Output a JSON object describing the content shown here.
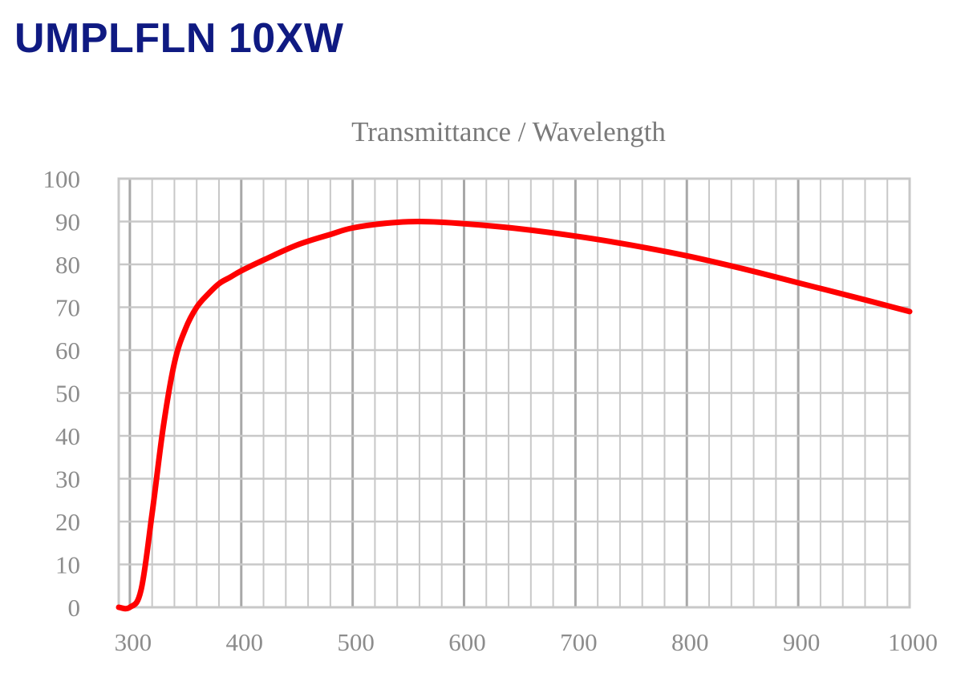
{
  "heading": "UMPLFLN 10XW",
  "colors": {
    "heading": "#0f1a82",
    "curve": "#ff0000",
    "grid": "#c8c8c8",
    "grid_major": "#a8a8a8",
    "text": "#808080"
  },
  "chart_data": {
    "type": "line",
    "title": "Transmittance / Wavelength",
    "xlabel": "",
    "ylabel": "",
    "xlim": [
      290,
      1000
    ],
    "ylim": [
      0,
      100
    ],
    "x_ticks": [
      300,
      400,
      500,
      600,
      700,
      800,
      900,
      1000
    ],
    "y_ticks": [
      0,
      10,
      20,
      30,
      40,
      50,
      60,
      70,
      80,
      90,
      100
    ],
    "x_minor_step": 20,
    "grid": true,
    "legend": "none",
    "series": [
      {
        "color": "#ff0000",
        "x": [
          290,
          300,
          310,
          320,
          330,
          340,
          350,
          360,
          370,
          380,
          390,
          400,
          420,
          450,
          480,
          500,
          530,
          560,
          600,
          650,
          700,
          750,
          800,
          850,
          900,
          950,
          1000
        ],
        "y": [
          0,
          0,
          4,
          22,
          42,
          57,
          65,
          70,
          73,
          75.5,
          77,
          78.5,
          81,
          84.5,
          87,
          88.5,
          89.6,
          90,
          89.5,
          88.3,
          86.6,
          84.5,
          82,
          79,
          75.7,
          72.4,
          69
        ]
      }
    ]
  }
}
